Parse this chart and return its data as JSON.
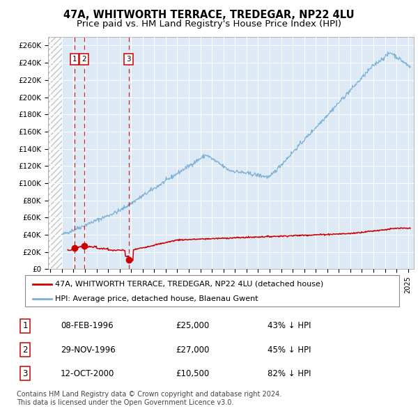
{
  "title": "47A, WHITWORTH TERRACE, TREDEGAR, NP22 4LU",
  "subtitle": "Price paid vs. HM Land Registry's House Price Index (HPI)",
  "yticks": [
    0,
    20000,
    40000,
    60000,
    80000,
    100000,
    120000,
    140000,
    160000,
    180000,
    200000,
    220000,
    240000,
    260000
  ],
  "ytick_labels": [
    "£0",
    "£20K",
    "£40K",
    "£60K",
    "£80K",
    "£100K",
    "£120K",
    "£140K",
    "£160K",
    "£180K",
    "£200K",
    "£220K",
    "£240K",
    "£260K"
  ],
  "xlim_left": 1993.8,
  "xlim_right": 2025.5,
  "ylim_bottom": 0,
  "ylim_top": 270000,
  "hatch_end": 1995.0,
  "hpi_color": "#7ab0d4",
  "price_color": "#cc0000",
  "bg_plot": "#ddeaf6",
  "grid_color": "#ffffff",
  "sale_dates": [
    1996.1,
    1996.92,
    2000.78
  ],
  "sale_prices": [
    25000,
    27000,
    10500
  ],
  "sale_labels": [
    "1",
    "2",
    "3"
  ],
  "legend_line1": "47A, WHITWORTH TERRACE, TREDEGAR, NP22 4LU (detached house)",
  "legend_line2": "HPI: Average price, detached house, Blaenau Gwent",
  "table_rows": [
    [
      "1",
      "08-FEB-1996",
      "£25,000",
      "43% ↓ HPI"
    ],
    [
      "2",
      "29-NOV-1996",
      "£27,000",
      "45% ↓ HPI"
    ],
    [
      "3",
      "12-OCT-2000",
      "£10,500",
      "82% ↓ HPI"
    ]
  ],
  "footer": "Contains HM Land Registry data © Crown copyright and database right 2024.\nThis data is licensed under the Open Government Licence v3.0.",
  "label_box_color": "#cc0000",
  "fig_width": 6.0,
  "fig_height": 5.9,
  "dpi": 100
}
